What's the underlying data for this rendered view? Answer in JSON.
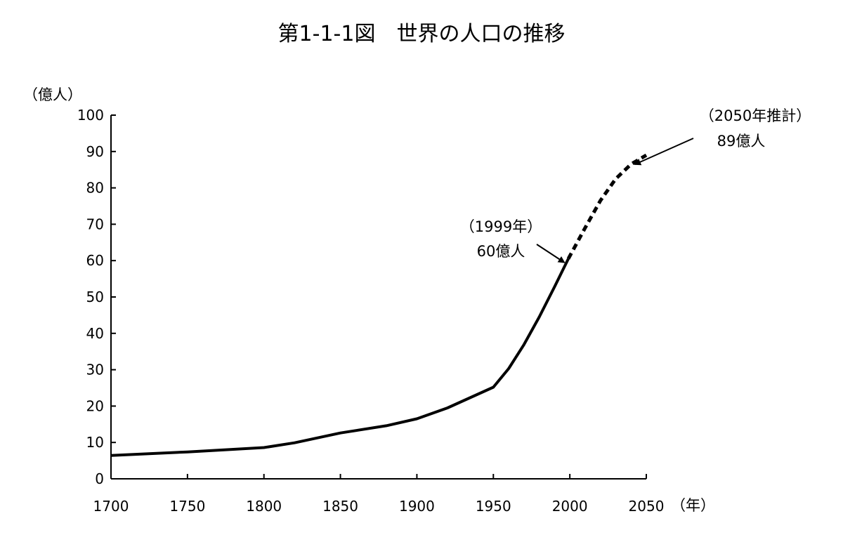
{
  "chart_data": {
    "type": "line",
    "title": "第1-1-1図　世界の人口の推移",
    "ylabel": "（億人）",
    "xlabel": "（年）",
    "xlim": [
      1700,
      2050
    ],
    "ylim": [
      0,
      100
    ],
    "x_ticks": [
      "1700",
      "1750",
      "1800",
      "1850",
      "1900",
      "1950",
      "2000",
      "2050"
    ],
    "y_ticks": [
      "0",
      "10",
      "20",
      "30",
      "40",
      "50",
      "60",
      "70",
      "80",
      "90",
      "100"
    ],
    "grid": false,
    "series": [
      {
        "style": "solid",
        "color": "#000000",
        "points": [
          {
            "x": 1700,
            "y": 6.4
          },
          {
            "x": 1750,
            "y": 7.4
          },
          {
            "x": 1800,
            "y": 8.6
          },
          {
            "x": 1820,
            "y": 9.9
          },
          {
            "x": 1850,
            "y": 12.6
          },
          {
            "x": 1880,
            "y": 14.6
          },
          {
            "x": 1900,
            "y": 16.5
          },
          {
            "x": 1920,
            "y": 19.5
          },
          {
            "x": 1950,
            "y": 25.2
          },
          {
            "x": 1960,
            "y": 30.3
          },
          {
            "x": 1970,
            "y": 36.9
          },
          {
            "x": 1980,
            "y": 44.5
          },
          {
            "x": 1990,
            "y": 52.8
          },
          {
            "x": 1999,
            "y": 60.5
          }
        ]
      },
      {
        "style": "dashed",
        "color": "#000000",
        "points": [
          {
            "x": 1999,
            "y": 60.5
          },
          {
            "x": 2010,
            "y": 69.0
          },
          {
            "x": 2020,
            "y": 76.5
          },
          {
            "x": 2030,
            "y": 82.5
          },
          {
            "x": 2040,
            "y": 86.5
          },
          {
            "x": 2050,
            "y": 89.0
          }
        ]
      }
    ],
    "annotations": [
      {
        "lines": [
          "（1999年）",
          "60億人"
        ],
        "target": {
          "x": 1999,
          "y": 60.5
        }
      },
      {
        "lines": [
          "（2050年推計）",
          "89億人"
        ],
        "target": {
          "x": 2050,
          "y": 89.0
        }
      }
    ]
  }
}
